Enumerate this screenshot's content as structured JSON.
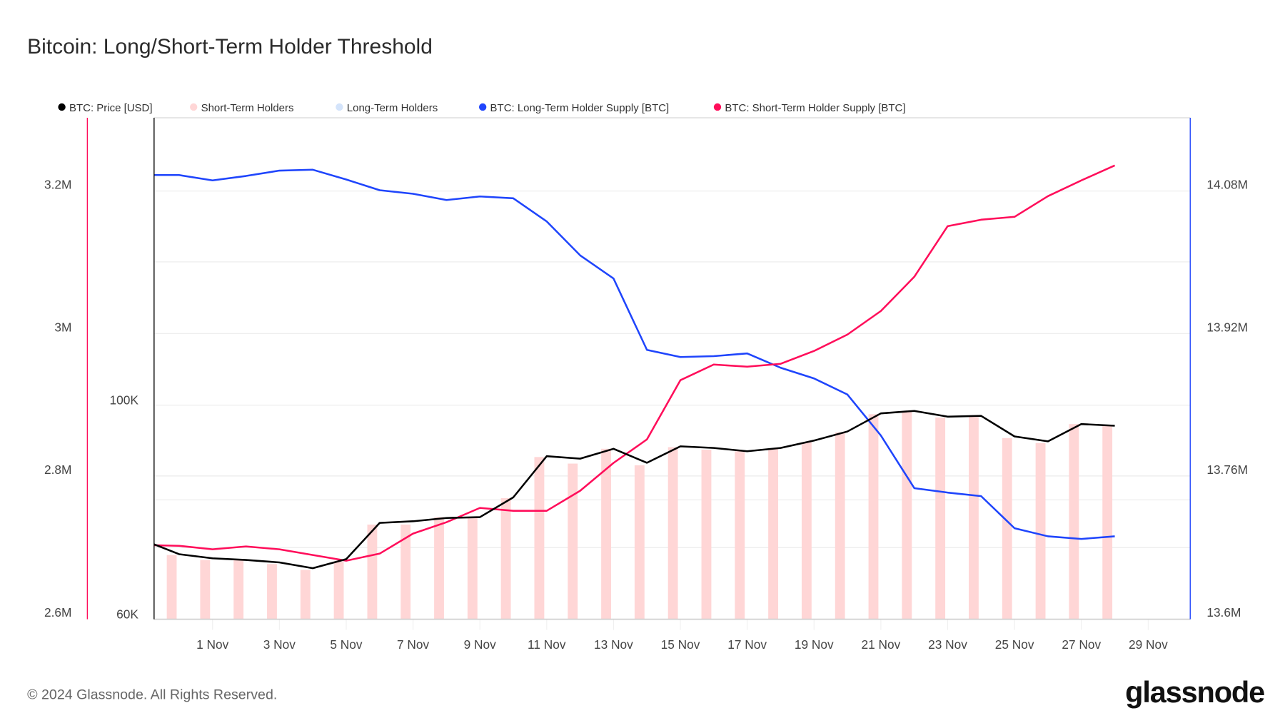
{
  "title": "Bitcoin: Long/Short-Term Holder Threshold",
  "footer": "© 2024 Glassnode. All Rights Reserved.",
  "logo": "glassnode",
  "colors": {
    "price": "#000000",
    "sth_bars": "#ffd6d6",
    "lth_bars": "#d4e4fb",
    "lth_supply": "#1f45fc",
    "sth_supply": "#ff0d5a"
  },
  "chart_data": {
    "type": "line",
    "title": "Bitcoin: Long/Short-Term Holder Threshold",
    "legend": [
      "BTC: Price [USD]",
      "Short-Term Holders",
      "Long-Term Holders",
      "BTC: Long-Term Holder Supply [BTC]",
      "BTC: Short-Term Holder Supply [BTC]"
    ],
    "legend_position": "top-left",
    "x_tick_labels": [
      "1 Nov",
      "3 Nov",
      "5 Nov",
      "7 Nov",
      "9 Nov",
      "11 Nov",
      "13 Nov",
      "15 Nov",
      "17 Nov",
      "19 Nov",
      "21 Nov",
      "23 Nov",
      "25 Nov",
      "27 Nov",
      "29 Nov"
    ],
    "x_days_from_1nov": [
      -2,
      -1,
      0,
      1,
      2,
      3,
      4,
      5,
      6,
      7,
      8,
      9,
      10,
      11,
      12,
      13,
      14,
      15,
      16,
      17,
      18,
      19,
      20,
      21,
      22,
      23,
      24,
      25,
      26,
      27
    ],
    "axes": {
      "left_sth_supply": {
        "ticks": [
          "2.6M",
          "2.8M",
          "3M",
          "3.2M"
        ],
        "range": [
          2600000,
          3200000
        ]
      },
      "price": {
        "ticks": [
          "60K",
          "100K"
        ],
        "range": [
          60000,
          100000
        ],
        "scale": "log-like"
      },
      "right_lth_supply": {
        "ticks": [
          "13.6M",
          "13.76M",
          "13.92M",
          "14.08M"
        ],
        "range": [
          13600000,
          14080000
        ]
      }
    },
    "series": [
      {
        "name": "BTC: Price [USD]",
        "axis": "price",
        "values": [
          74620,
          72150,
          71380,
          71080,
          70620,
          69540,
          71230,
          78000,
          78310,
          78920,
          79080,
          82770,
          90460,
          90000,
          91850,
          89230,
          92310,
          92000,
          91380,
          92000,
          93380,
          95080,
          98460,
          98920,
          97850,
          98000,
          94150,
          93230,
          96460,
          96150
        ]
      },
      {
        "name": "BTC: Long-Term Holder Supply [BTC]",
        "axis": "right_lth_supply",
        "values": [
          14098000,
          14098000,
          14092000,
          14097000,
          14103000,
          14104000,
          14093000,
          14081000,
          14077000,
          14070000,
          14074000,
          14072000,
          14046000,
          14008000,
          13982000,
          13902000,
          13894000,
          13895000,
          13898000,
          13882000,
          13870000,
          13852000,
          13806000,
          13747000,
          13742000,
          13738000,
          13702000,
          13693000,
          13690000,
          13693000
        ]
      },
      {
        "name": "BTC: Short-Term Holder Supply [BTC]",
        "axis": "left_sth_supply",
        "values": [
          2704000,
          2703000,
          2698000,
          2702000,
          2698000,
          2690000,
          2682000,
          2692000,
          2720000,
          2736000,
          2756000,
          2752000,
          2752000,
          2780000,
          2819000,
          2852000,
          2935000,
          2957000,
          2954000,
          2958000,
          2976000,
          2999000,
          3032000,
          3080000,
          3151000,
          3160000,
          3164000,
          3193000,
          3215000,
          3236000
        ]
      },
      {
        "name": "Short-Term Holders",
        "type": "bar",
        "axis": "price",
        "start_day": -1,
        "values": [
          72000,
          71080,
          71080,
          70310,
          69230,
          70770,
          77690,
          77690,
          79080,
          79080,
          82620,
          90310,
          89080,
          91850,
          88770,
          92150,
          91690,
          91380,
          91850,
          93080,
          94920,
          98310,
          98770,
          97690,
          98000,
          93850,
          92920,
          96460,
          96150
        ]
      }
    ]
  }
}
